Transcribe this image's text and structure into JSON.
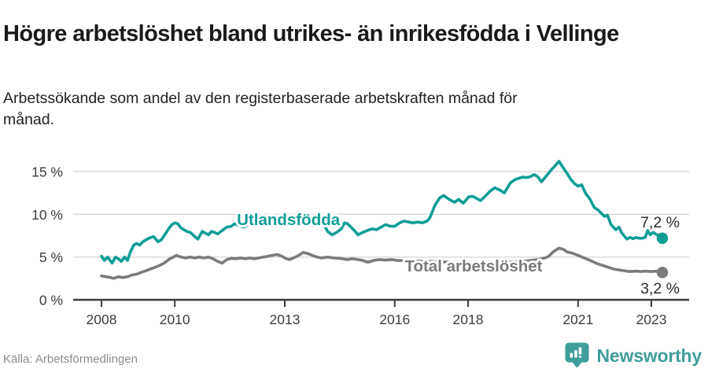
{
  "header": {
    "title": "Högre arbetslöshet bland utrikes- än inrikesfödda i Vellinge",
    "subtitle": "Arbetssökande som andel av den registerbaserade arbetskraften månad för månad."
  },
  "footer": {
    "source": "Källa: Arbetsförmedlingen",
    "brand": "Newsworthy",
    "brand_color": "#3f9e9a"
  },
  "colors": {
    "accent_teal": "#0f9d96",
    "series_gray": "#7b7b7b",
    "grid": "#d8d8d8",
    "axis": "#3d3d3d",
    "end_label": "#2b2b2b"
  },
  "chart_data": {
    "type": "line",
    "title": "Arbetssökande som andel av den registerbaserade arbetskraften månad för månad",
    "xlabel": "",
    "ylabel": "",
    "grid": "horizontal",
    "legend_position": "inline-labels",
    "xlim": [
      2007.23,
      2024.03
    ],
    "ylim": [
      0,
      16.9
    ],
    "yticks": [
      {
        "v": 0,
        "label": "0 %"
      },
      {
        "v": 5,
        "label": "5 %"
      },
      {
        "v": 10,
        "label": "10 %"
      },
      {
        "v": 15,
        "label": "15 %"
      }
    ],
    "xticks": [
      {
        "v": 2008,
        "label": "2008"
      },
      {
        "v": 2010,
        "label": "2010"
      },
      {
        "v": 2013,
        "label": "2013"
      },
      {
        "v": 2016,
        "label": "2016"
      },
      {
        "v": 2018,
        "label": "2018"
      },
      {
        "v": 2021,
        "label": "2021"
      },
      {
        "v": 2023,
        "label": "2023"
      }
    ],
    "series": [
      {
        "name": "Total arbetslöshet",
        "color": "#7b7b7b",
        "end_label": "3,2 %",
        "end_label_side": "below",
        "inline_label": {
          "text": "Total arbetslöshet",
          "x": 2018.15,
          "y": 3.3
        },
        "points": [
          [
            2008.0,
            2.8
          ],
          [
            2008.13,
            2.7
          ],
          [
            2008.25,
            2.6
          ],
          [
            2008.33,
            2.5
          ],
          [
            2008.46,
            2.7
          ],
          [
            2008.58,
            2.6
          ],
          [
            2008.71,
            2.7
          ],
          [
            2008.83,
            2.9
          ],
          [
            2008.96,
            3.0
          ],
          [
            2009.08,
            3.2
          ],
          [
            2009.21,
            3.4
          ],
          [
            2009.33,
            3.6
          ],
          [
            2009.46,
            3.8
          ],
          [
            2009.58,
            4.0
          ],
          [
            2009.71,
            4.3
          ],
          [
            2009.83,
            4.7
          ],
          [
            2009.96,
            5.0
          ],
          [
            2010.04,
            5.2
          ],
          [
            2010.17,
            5.0
          ],
          [
            2010.29,
            4.9
          ],
          [
            2010.42,
            5.0
          ],
          [
            2010.54,
            4.9
          ],
          [
            2010.67,
            5.0
          ],
          [
            2010.79,
            4.9
          ],
          [
            2010.92,
            5.0
          ],
          [
            2011.04,
            4.8
          ],
          [
            2011.17,
            4.5
          ],
          [
            2011.29,
            4.3
          ],
          [
            2011.42,
            4.7
          ],
          [
            2011.54,
            4.85
          ],
          [
            2011.67,
            4.8
          ],
          [
            2011.79,
            4.9
          ],
          [
            2011.92,
            4.8
          ],
          [
            2012.04,
            4.9
          ],
          [
            2012.17,
            4.8
          ],
          [
            2012.29,
            4.9
          ],
          [
            2012.42,
            5.0
          ],
          [
            2012.54,
            5.1
          ],
          [
            2012.67,
            5.2
          ],
          [
            2012.79,
            5.3
          ],
          [
            2012.92,
            5.1
          ],
          [
            2013.04,
            4.8
          ],
          [
            2013.13,
            4.7
          ],
          [
            2013.29,
            5.0
          ],
          [
            2013.42,
            5.3
          ],
          [
            2013.5,
            5.55
          ],
          [
            2013.63,
            5.4
          ],
          [
            2013.75,
            5.2
          ],
          [
            2013.88,
            5.0
          ],
          [
            2014.0,
            4.9
          ],
          [
            2014.17,
            5.0
          ],
          [
            2014.33,
            4.9
          ],
          [
            2014.5,
            4.85
          ],
          [
            2014.71,
            4.7
          ],
          [
            2014.83,
            4.8
          ],
          [
            2015.0,
            4.7
          ],
          [
            2015.13,
            4.6
          ],
          [
            2015.27,
            4.4
          ],
          [
            2015.42,
            4.6
          ],
          [
            2015.58,
            4.7
          ],
          [
            2015.75,
            4.65
          ],
          [
            2015.92,
            4.7
          ],
          [
            2016.08,
            4.6
          ],
          [
            2016.4,
            4.6
          ],
          [
            2016.7,
            4.5
          ],
          [
            2017.0,
            4.5
          ],
          [
            2017.5,
            4.4
          ],
          [
            2018.0,
            4.3
          ],
          [
            2018.5,
            4.3
          ],
          [
            2019.0,
            4.4
          ],
          [
            2019.5,
            4.5
          ],
          [
            2019.9,
            4.7
          ],
          [
            2020.1,
            4.9
          ],
          [
            2020.2,
            5.1
          ],
          [
            2020.35,
            5.7
          ],
          [
            2020.48,
            6.05
          ],
          [
            2020.6,
            5.9
          ],
          [
            2020.7,
            5.6
          ],
          [
            2020.85,
            5.45
          ],
          [
            2021.0,
            5.2
          ],
          [
            2021.11,
            5.0
          ],
          [
            2021.33,
            4.6
          ],
          [
            2021.54,
            4.2
          ],
          [
            2021.76,
            3.9
          ],
          [
            2021.97,
            3.6
          ],
          [
            2022.18,
            3.45
          ],
          [
            2022.4,
            3.3
          ],
          [
            2022.61,
            3.35
          ],
          [
            2022.72,
            3.3
          ],
          [
            2022.83,
            3.35
          ],
          [
            2023.0,
            3.3
          ],
          [
            2023.15,
            3.35
          ],
          [
            2023.3,
            3.2
          ]
        ]
      },
      {
        "name": "Utlandsfödda",
        "color": "#0f9d96",
        "end_label": "7,2 %",
        "end_label_side": "above",
        "inline_label": {
          "text": "Utlandsfödda",
          "x": 2013.1,
          "y": 8.74
        },
        "points": [
          [
            2008.0,
            5.1
          ],
          [
            2008.08,
            4.6
          ],
          [
            2008.17,
            5.0
          ],
          [
            2008.29,
            4.3
          ],
          [
            2008.38,
            5.0
          ],
          [
            2008.46,
            4.8
          ],
          [
            2008.54,
            4.5
          ],
          [
            2008.63,
            5.0
          ],
          [
            2008.71,
            4.6
          ],
          [
            2008.79,
            5.6
          ],
          [
            2008.88,
            6.4
          ],
          [
            2008.96,
            6.6
          ],
          [
            2009.04,
            6.4
          ],
          [
            2009.13,
            6.8
          ],
          [
            2009.21,
            7.0
          ],
          [
            2009.29,
            7.2
          ],
          [
            2009.42,
            7.4
          ],
          [
            2009.54,
            6.8
          ],
          [
            2009.63,
            7.0
          ],
          [
            2009.71,
            7.5
          ],
          [
            2009.83,
            8.3
          ],
          [
            2009.92,
            8.8
          ],
          [
            2010.0,
            9.0
          ],
          [
            2010.08,
            8.9
          ],
          [
            2010.17,
            8.4
          ],
          [
            2010.25,
            8.2
          ],
          [
            2010.33,
            8.0
          ],
          [
            2010.42,
            7.9
          ],
          [
            2010.54,
            7.4
          ],
          [
            2010.63,
            7.1
          ],
          [
            2010.75,
            8.0
          ],
          [
            2010.83,
            7.8
          ],
          [
            2010.92,
            7.6
          ],
          [
            2011.0,
            8.0
          ],
          [
            2011.08,
            7.9
          ],
          [
            2011.17,
            7.7
          ],
          [
            2011.29,
            8.1
          ],
          [
            2011.42,
            8.5
          ],
          [
            2011.54,
            8.6
          ],
          [
            2011.63,
            8.9
          ],
          [
            2011.75,
            8.7
          ],
          [
            2011.88,
            8.5
          ],
          [
            2012.0,
            8.8
          ],
          [
            2012.13,
            8.9
          ],
          [
            2012.25,
            8.8
          ],
          [
            2012.38,
            9.2
          ],
          [
            2012.5,
            9.0
          ],
          [
            2012.63,
            8.8
          ],
          [
            2012.75,
            8.9
          ],
          [
            2012.88,
            9.0
          ],
          [
            2013.0,
            8.9
          ],
          [
            2013.13,
            8.7
          ],
          [
            2013.25,
            8.8
          ],
          [
            2013.38,
            9.1
          ],
          [
            2013.5,
            9.3
          ],
          [
            2013.63,
            9.2
          ],
          [
            2013.75,
            9.1
          ],
          [
            2013.88,
            8.9
          ],
          [
            2014.0,
            9.1
          ],
          [
            2014.08,
            8.7
          ],
          [
            2014.17,
            8.0
          ],
          [
            2014.29,
            7.6
          ],
          [
            2014.42,
            7.9
          ],
          [
            2014.54,
            8.3
          ],
          [
            2014.63,
            9.0
          ],
          [
            2014.71,
            8.9
          ],
          [
            2014.83,
            8.4
          ],
          [
            2014.92,
            8.0
          ],
          [
            2015.0,
            7.6
          ],
          [
            2015.13,
            7.9
          ],
          [
            2015.25,
            8.1
          ],
          [
            2015.38,
            8.3
          ],
          [
            2015.5,
            8.2
          ],
          [
            2015.63,
            8.5
          ],
          [
            2015.75,
            8.8
          ],
          [
            2015.88,
            8.6
          ],
          [
            2016.0,
            8.6
          ],
          [
            2016.13,
            9.0
          ],
          [
            2016.25,
            9.2
          ],
          [
            2016.38,
            9.1
          ],
          [
            2016.5,
            9.0
          ],
          [
            2016.63,
            9.1
          ],
          [
            2016.75,
            9.0
          ],
          [
            2016.88,
            9.2
          ],
          [
            2016.96,
            9.6
          ],
          [
            2017.09,
            11.0
          ],
          [
            2017.22,
            11.9
          ],
          [
            2017.33,
            12.2
          ],
          [
            2017.48,
            11.75
          ],
          [
            2017.63,
            11.4
          ],
          [
            2017.74,
            11.75
          ],
          [
            2017.87,
            11.3
          ],
          [
            2018.02,
            12.05
          ],
          [
            2018.13,
            12.1
          ],
          [
            2018.34,
            11.6
          ],
          [
            2018.45,
            12.05
          ],
          [
            2018.6,
            12.7
          ],
          [
            2018.73,
            13.1
          ],
          [
            2018.88,
            12.8
          ],
          [
            2018.99,
            12.5
          ],
          [
            2019.16,
            13.7
          ],
          [
            2019.3,
            14.1
          ],
          [
            2019.48,
            14.35
          ],
          [
            2019.6,
            14.3
          ],
          [
            2019.7,
            14.4
          ],
          [
            2019.8,
            14.65
          ],
          [
            2019.9,
            14.4
          ],
          [
            2020.0,
            13.8
          ],
          [
            2020.1,
            14.3
          ],
          [
            2020.27,
            15.2
          ],
          [
            2020.4,
            15.8
          ],
          [
            2020.48,
            16.2
          ],
          [
            2020.6,
            15.4
          ],
          [
            2020.7,
            14.8
          ],
          [
            2020.8,
            14.1
          ],
          [
            2020.9,
            13.6
          ],
          [
            2021.0,
            13.3
          ],
          [
            2021.1,
            13.45
          ],
          [
            2021.2,
            12.5
          ],
          [
            2021.33,
            11.75
          ],
          [
            2021.44,
            10.8
          ],
          [
            2021.55,
            10.5
          ],
          [
            2021.65,
            10.05
          ],
          [
            2021.72,
            9.75
          ],
          [
            2021.8,
            9.9
          ],
          [
            2021.9,
            8.8
          ],
          [
            2022.03,
            8.2
          ],
          [
            2022.12,
            8.5
          ],
          [
            2022.18,
            7.9
          ],
          [
            2022.33,
            7.1
          ],
          [
            2022.42,
            7.3
          ],
          [
            2022.5,
            7.15
          ],
          [
            2022.58,
            7.3
          ],
          [
            2022.67,
            7.2
          ],
          [
            2022.75,
            7.2
          ],
          [
            2022.83,
            7.3
          ],
          [
            2022.9,
            8.1
          ],
          [
            2022.97,
            7.6
          ],
          [
            2023.05,
            7.9
          ],
          [
            2023.15,
            7.6
          ],
          [
            2023.22,
            7.5
          ],
          [
            2023.3,
            7.2
          ]
        ]
      }
    ]
  }
}
